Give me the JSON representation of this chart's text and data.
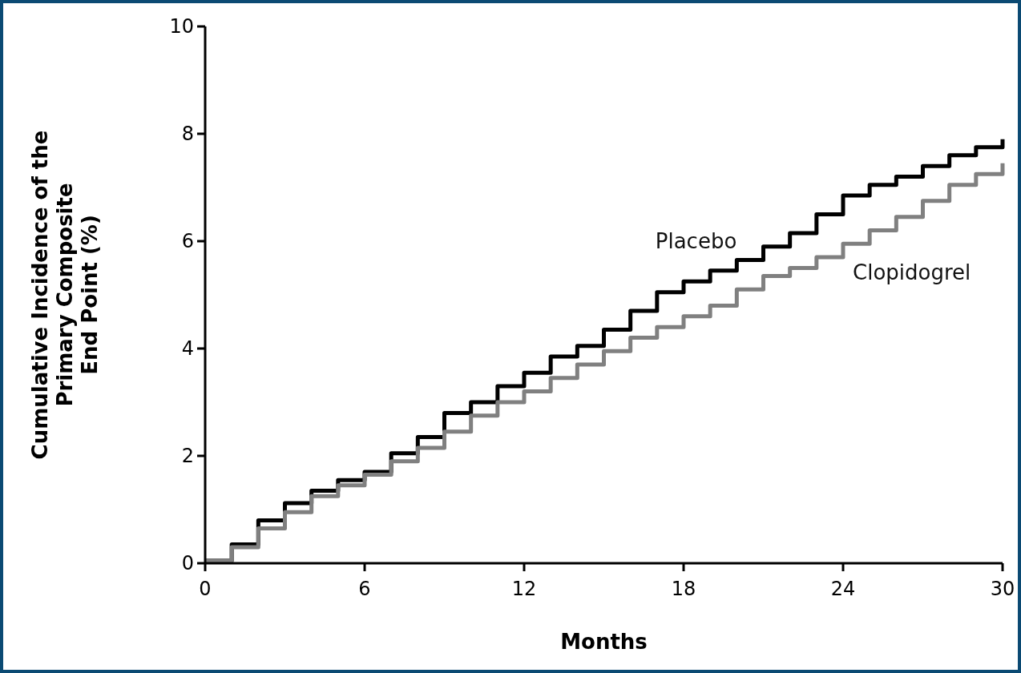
{
  "chart_data": {
    "type": "step",
    "xlabel": "Months",
    "ylabel": "Cumulative Incidence of the\nPrimary Composite\nEnd Point (%)",
    "x": [
      0,
      1,
      2,
      3,
      4,
      5,
      6,
      7,
      8,
      9,
      10,
      11,
      12,
      13,
      14,
      15,
      16,
      17,
      18,
      19,
      20,
      21,
      22,
      23,
      24,
      25,
      26,
      27,
      28,
      29,
      30
    ],
    "xlim": [
      0,
      30
    ],
    "xticks": [
      0,
      6,
      12,
      18,
      24,
      30
    ],
    "ylim": [
      0,
      10
    ],
    "yticks": [
      0,
      2,
      4,
      6,
      8,
      10
    ],
    "series": [
      {
        "name": "Placebo",
        "color": "#000000",
        "values": [
          0.05,
          0.35,
          0.8,
          1.12,
          1.35,
          1.55,
          1.7,
          2.05,
          2.35,
          2.8,
          3.0,
          3.3,
          3.55,
          3.85,
          4.05,
          4.35,
          4.7,
          5.05,
          5.25,
          5.45,
          5.65,
          5.9,
          6.15,
          6.5,
          6.85,
          7.05,
          7.2,
          7.4,
          7.6,
          7.75,
          7.9
        ]
      },
      {
        "name": "Clopidogrel",
        "color": "#808080",
        "values": [
          0.05,
          0.3,
          0.65,
          0.95,
          1.25,
          1.45,
          1.65,
          1.9,
          2.15,
          2.45,
          2.75,
          3.0,
          3.2,
          3.45,
          3.7,
          3.95,
          4.2,
          4.4,
          4.6,
          4.8,
          5.1,
          5.35,
          5.5,
          5.7,
          5.95,
          6.2,
          6.45,
          6.75,
          7.05,
          7.25,
          7.45
        ]
      }
    ]
  }
}
